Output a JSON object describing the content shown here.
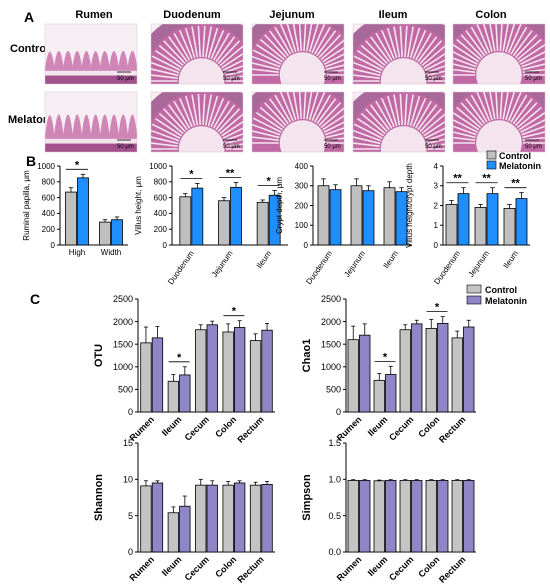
{
  "panel_labels": [
    "A",
    "B",
    "C"
  ],
  "histology": {
    "columns": [
      "Rumen",
      "Duodenum",
      "Jejunum",
      "Ileum",
      "Colon"
    ],
    "rows": [
      "Control",
      "Melatonin"
    ],
    "scale_label": "50 μm",
    "colors": {
      "tissue": "#c46aa6",
      "tissue_dark": "#8f3b7c",
      "lumen": "#f4e4ee",
      "background": "#f7eef4"
    }
  },
  "legend_b": [
    "Control",
    "Melatonin"
  ],
  "legend_c": [
    "Control",
    "Melatonin"
  ],
  "colors": {
    "control_b": "#bfbfbf",
    "melatonin_b": "#1f8fff",
    "control_c": "#c4c4c4",
    "melatonin_c": "#8e86c6"
  },
  "chart_data": [
    {
      "type": "bar",
      "panel": "B",
      "ylabel": "Ruminal papilla, μm",
      "categories": [
        "High",
        "Width"
      ],
      "ylim": [
        0,
        1000
      ],
      "yticks": [
        "0",
        "200",
        "400",
        "600",
        "800",
        "1000"
      ],
      "series": [
        {
          "name": "Control",
          "values": [
            670,
            290
          ],
          "errors": [
            55,
            30
          ]
        },
        {
          "name": "Melatonin",
          "values": [
            850,
            320
          ],
          "errors": [
            45,
            35
          ]
        }
      ],
      "significance": [
        {
          "category": 0,
          "label": "*"
        }
      ]
    },
    {
      "type": "bar",
      "panel": "B",
      "ylabel": "Villus height, μm",
      "categories": [
        "Duodenum",
        "Jejunum",
        "Ileum"
      ],
      "ylim": [
        0,
        1000
      ],
      "yticks": [
        "0",
        "200",
        "400",
        "600",
        "800",
        "1000"
      ],
      "series": [
        {
          "name": "Control",
          "values": [
            610,
            560,
            540
          ],
          "errors": [
            40,
            40,
            30
          ]
        },
        {
          "name": "Melatonin",
          "values": [
            720,
            730,
            630
          ],
          "errors": [
            60,
            60,
            60
          ]
        }
      ],
      "significance": [
        {
          "category": 0,
          "label": "*"
        },
        {
          "category": 1,
          "label": "**"
        },
        {
          "category": 2,
          "label": "*"
        }
      ]
    },
    {
      "type": "bar",
      "panel": "B",
      "ylabel": "Crypt depth, μm",
      "categories": [
        "Duodenum",
        "Jejunum",
        "Ileum"
      ],
      "ylim": [
        0,
        400
      ],
      "yticks": [
        "0",
        "100",
        "200",
        "300",
        "400"
      ],
      "series": [
        {
          "name": "Control",
          "values": [
            300,
            300,
            290
          ],
          "errors": [
            35,
            35,
            30
          ]
        },
        {
          "name": "Melatonin",
          "values": [
            280,
            275,
            270
          ],
          "errors": [
            25,
            25,
            20
          ]
        }
      ],
      "significance": []
    },
    {
      "type": "bar",
      "panel": "B",
      "ylabel": "Villus height/crypt depth",
      "categories": [
        "Duodenum",
        "Jejunum",
        "Ileum"
      ],
      "ylim": [
        0,
        4
      ],
      "yticks": [
        "0",
        "1",
        "2",
        "3",
        "4"
      ],
      "series": [
        {
          "name": "Control",
          "values": [
            2.05,
            1.9,
            1.85
          ],
          "errors": [
            0.2,
            0.15,
            0.2
          ]
        },
        {
          "name": "Melatonin",
          "values": [
            2.6,
            2.6,
            2.35
          ],
          "errors": [
            0.3,
            0.3,
            0.3
          ]
        }
      ],
      "significance": [
        {
          "category": 0,
          "label": "**"
        },
        {
          "category": 1,
          "label": "**"
        },
        {
          "category": 2,
          "label": "**"
        }
      ]
    },
    {
      "type": "bar",
      "panel": "C",
      "ylabel": "OTU",
      "categories": [
        "Rumen",
        "Ileum",
        "Cecum",
        "Colon",
        "Rectum"
      ],
      "ylim": [
        0,
        2500
      ],
      "yticks": [
        "0",
        "500",
        "1000",
        "1500",
        "2000",
        "2500"
      ],
      "series": [
        {
          "name": "Control",
          "values": [
            1530,
            680,
            1820,
            1770,
            1580
          ],
          "errors": [
            350,
            150,
            110,
            180,
            150
          ]
        },
        {
          "name": "Melatonin",
          "values": [
            1640,
            820,
            1930,
            1870,
            1810
          ],
          "errors": [
            250,
            180,
            80,
            150,
            150
          ]
        }
      ],
      "significance": [
        {
          "category": 1,
          "label": "*"
        },
        {
          "category": 3,
          "label": "*"
        }
      ]
    },
    {
      "type": "bar",
      "panel": "C",
      "ylabel": "Chao1",
      "categories": [
        "Rumen",
        "Ileum",
        "Cecum",
        "Colon",
        "Rectum"
      ],
      "ylim": [
        0,
        2500
      ],
      "yticks": [
        "0",
        "500",
        "1000",
        "1500",
        "2000",
        "2500"
      ],
      "series": [
        {
          "name": "Control",
          "values": [
            1600,
            700,
            1820,
            1850,
            1640
          ],
          "errors": [
            300,
            150,
            110,
            200,
            150
          ]
        },
        {
          "name": "Melatonin",
          "values": [
            1700,
            830,
            1950,
            1960,
            1880
          ],
          "errors": [
            250,
            180,
            80,
            150,
            150
          ]
        }
      ],
      "significance": [
        {
          "category": 1,
          "label": "*"
        },
        {
          "category": 3,
          "label": "*"
        }
      ]
    },
    {
      "type": "bar",
      "panel": "C",
      "ylabel": "Shannon",
      "categories": [
        "Rumen",
        "Ileum",
        "Cecum",
        "Colon",
        "Rectum"
      ],
      "ylim": [
        0,
        15
      ],
      "yticks": [
        "0",
        "5",
        "10",
        "15"
      ],
      "series": [
        {
          "name": "Control",
          "values": [
            9.1,
            5.4,
            9.2,
            9.2,
            9.2
          ],
          "errors": [
            0.7,
            0.8,
            0.8,
            0.5,
            0.4
          ]
        },
        {
          "name": "Melatonin",
          "values": [
            9.5,
            6.3,
            9.2,
            9.5,
            9.3
          ],
          "errors": [
            0.3,
            1.4,
            0.6,
            0.3,
            0.4
          ]
        }
      ],
      "significance": []
    },
    {
      "type": "bar",
      "panel": "C",
      "ylabel": "Simpson",
      "categories": [
        "Rumen",
        "Ileum",
        "Cecum",
        "Colon",
        "Rectum"
      ],
      "ylim": [
        0,
        1.5
      ],
      "yticks": [
        "0.0",
        "0.5",
        "1.0",
        "1.5"
      ],
      "series": [
        {
          "name": "Control",
          "values": [
            0.985,
            0.98,
            0.985,
            0.985,
            0.985
          ],
          "errors": [
            0.01,
            0.01,
            0.01,
            0.01,
            0.01
          ]
        },
        {
          "name": "Melatonin",
          "values": [
            0.985,
            0.985,
            0.985,
            0.985,
            0.985
          ],
          "errors": [
            0.01,
            0.01,
            0.01,
            0.01,
            0.01
          ]
        }
      ],
      "significance": []
    }
  ]
}
